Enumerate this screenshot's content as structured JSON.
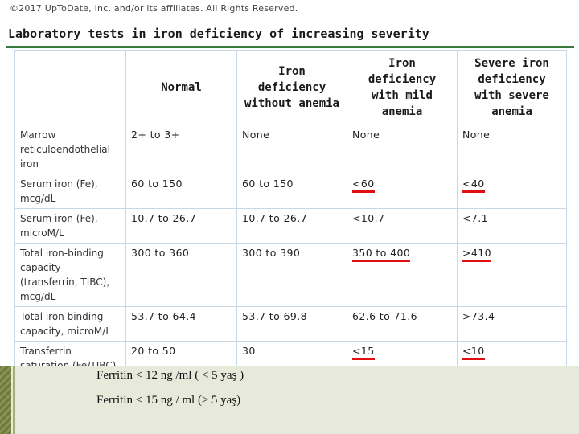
{
  "copyright": "©2017 UpToDate, Inc. and/or its affiliates. All Rights Reserved.",
  "title": "Laboratory tests in iron deficiency of increasing severity",
  "table": {
    "headers": [
      "",
      "Normal",
      "Iron deficiency without anemia",
      "Iron deficiency with mild anemia",
      "Severe iron deficiency with severe anemia"
    ],
    "rows": [
      {
        "label": "Marrow reticuloendothelial iron",
        "values": [
          "2+ to 3+",
          "None",
          "None",
          "None"
        ]
      },
      {
        "label": "Serum iron (Fe), mcg/dL",
        "values": [
          "60 to 150",
          "60 to 150",
          "<60",
          "<40"
        ]
      },
      {
        "label": "Serum iron (Fe), microM/L",
        "values": [
          "10.7 to 26.7",
          "10.7 to 26.7",
          "<10.7",
          "<7.1"
        ]
      },
      {
        "label": "Total iron-binding capacity (transferrin, TIBC), mcg/dL",
        "values": [
          "300 to 360",
          "300 to 390",
          "350 to 400",
          ">410"
        ]
      },
      {
        "label": "Total iron binding capacity, microM/L",
        "values": [
          "53.7 to 64.4",
          "53.7 to 69.8",
          "62.6 to 71.6",
          ">73.4"
        ]
      },
      {
        "label": "Transferrin saturation (Fe/TIBC), percent",
        "values": [
          "20 to 50",
          "30",
          "<15",
          "<10"
        ]
      }
    ]
  },
  "notes": [
    "Ferritin < 12 ng /ml ( < 5 yaş )",
    "Ferritin < 15 ng / ml (≥ 5 yaş)"
  ],
  "colors": {
    "highlight": "#e01010",
    "accent": "#3a7a3a",
    "band": "#e7eadb"
  }
}
